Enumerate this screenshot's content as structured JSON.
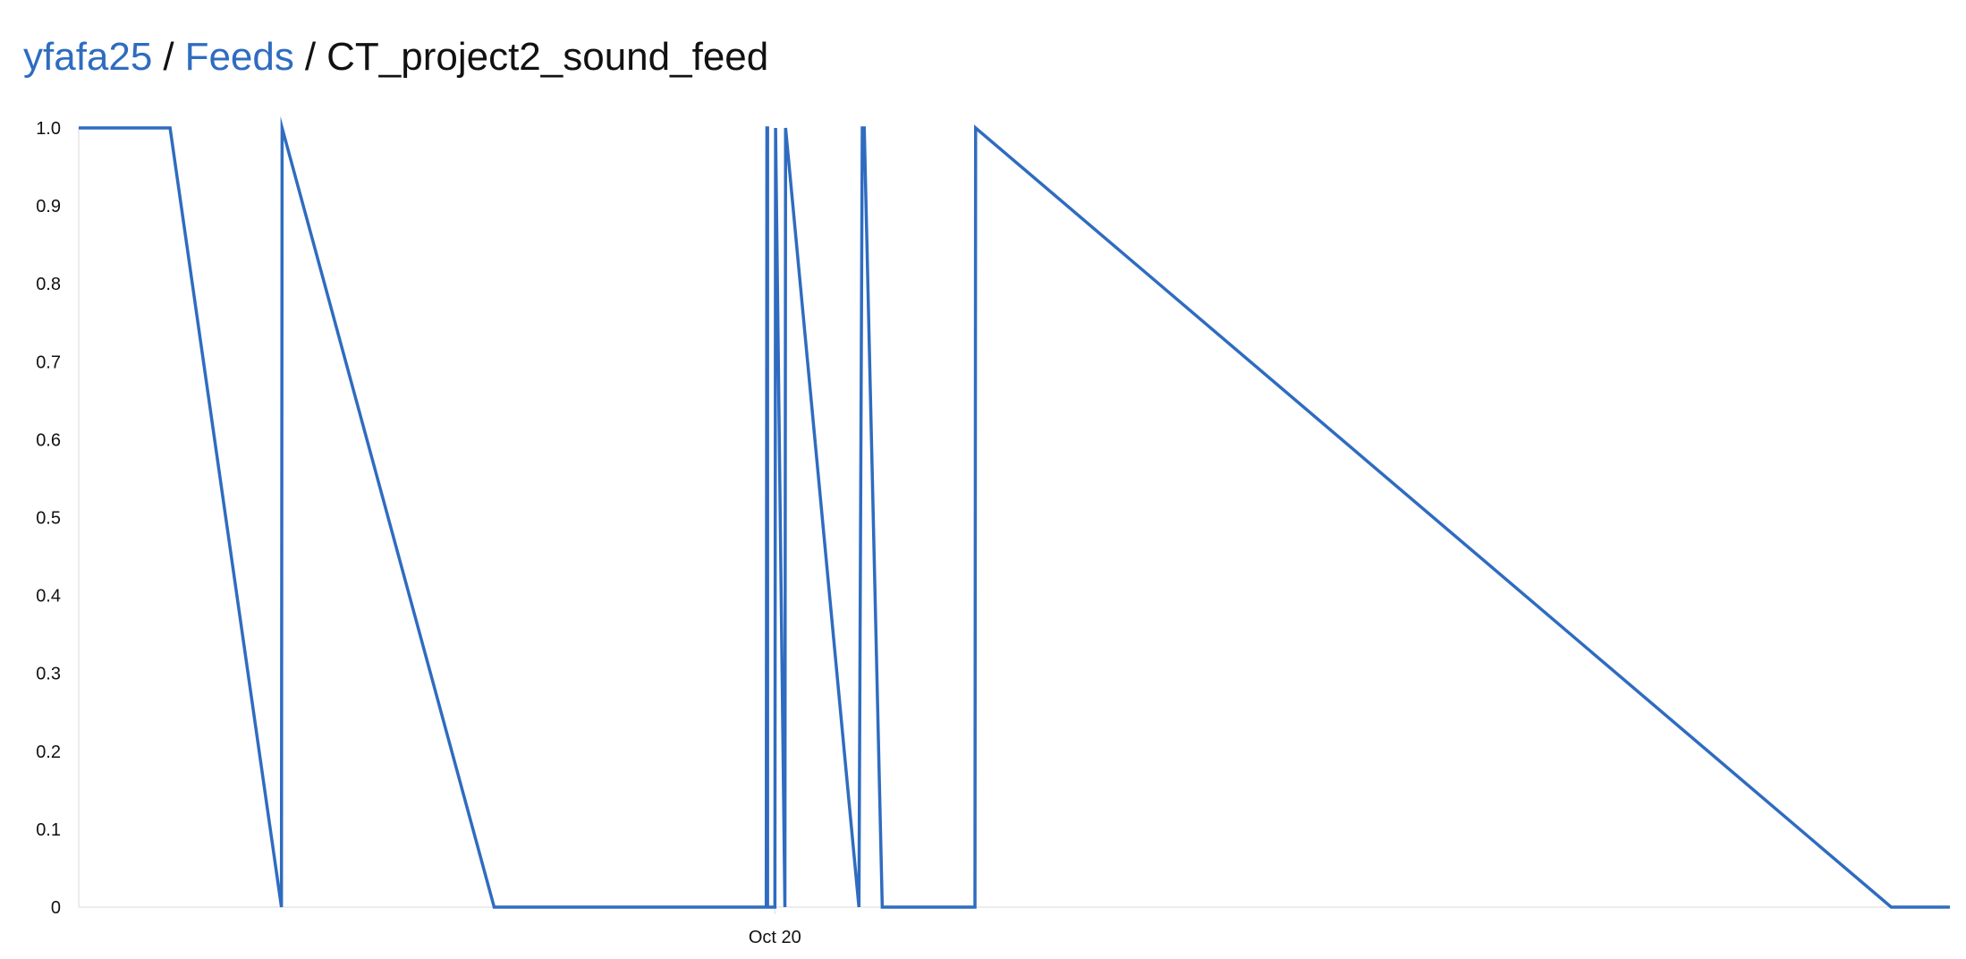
{
  "breadcrumb": {
    "user": "yfafa25",
    "section": "Feeds",
    "feed": "CT_project2_sound_feed",
    "separator": "/"
  },
  "colors": {
    "link": "#2f6cc0",
    "line": "#2f6cc0",
    "axis": "#e6e6e6",
    "text": "#111111"
  },
  "chart_data": {
    "type": "line",
    "title": "",
    "xlabel": "",
    "ylabel": "",
    "ylim": [
      0,
      1.0
    ],
    "yticks": [
      0,
      0.1,
      0.2,
      0.3,
      0.4,
      0.5,
      0.6,
      0.7,
      0.8,
      0.9,
      1.0
    ],
    "ytick_labels": [
      "0",
      "0.1",
      "0.2",
      "0.3",
      "0.4",
      "0.5",
      "0.6",
      "0.7",
      "0.8",
      "0.9",
      "1.0"
    ],
    "xlim": [
      "Oct 19 06:36",
      "Oct 21 05:22"
    ],
    "xticks": [
      {
        "x": "Oct 20 00:00",
        "label": "Oct 20"
      }
    ],
    "grid": false,
    "series": [
      {
        "name": "",
        "points": [
          {
            "x": "Oct 19 06:36",
            "y": 1
          },
          {
            "x": "Oct 19 08:53",
            "y": 1
          },
          {
            "x": "Oct 19 11:40",
            "y": 0
          },
          {
            "x": "Oct 19 11:41",
            "y": 1
          },
          {
            "x": "Oct 19 16:59",
            "y": 0
          },
          {
            "x": "Oct 19 23:47",
            "y": 0
          },
          {
            "x": "Oct 19 23:48",
            "y": 1
          },
          {
            "x": "Oct 19 23:49",
            "y": 1
          },
          {
            "x": "Oct 19 23:49",
            "y": 0
          },
          {
            "x": "Oct 20 00:00",
            "y": 0
          },
          {
            "x": "Oct 20 00:01",
            "y": 1
          },
          {
            "x": "Oct 20 00:15",
            "y": 0
          },
          {
            "x": "Oct 20 00:16",
            "y": 1
          },
          {
            "x": "Oct 20 02:06",
            "y": 0
          },
          {
            "x": "Oct 20 02:11",
            "y": 1
          },
          {
            "x": "Oct 20 02:14",
            "y": 1
          },
          {
            "x": "Oct 20 02:41",
            "y": 0
          },
          {
            "x": "Oct 20 05:00",
            "y": 0
          },
          {
            "x": "Oct 20 05:01",
            "y": 1
          },
          {
            "x": "Oct 21 03:54",
            "y": 0
          },
          {
            "x": "Oct 21 05:22",
            "y": 0
          }
        ]
      }
    ]
  }
}
